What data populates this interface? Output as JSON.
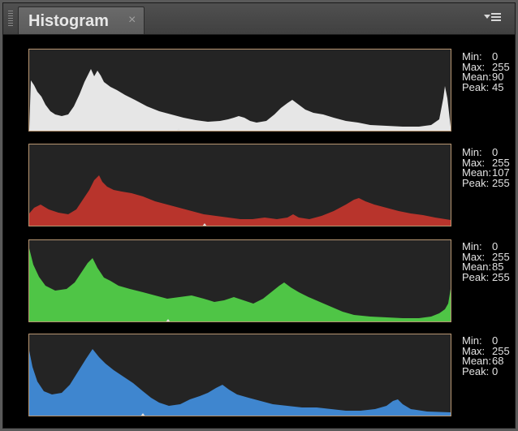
{
  "panel": {
    "tab_label": "Histogram",
    "close_glyph": "×",
    "flyout_icon": "panel-menu-icon"
  },
  "channels": [
    {
      "id": "luminosity",
      "color": "#e6e6e6",
      "stats": [
        {
          "label": "Min:",
          "value": "0"
        },
        {
          "label": "Max:",
          "value": "255"
        },
        {
          "label": "Mean:",
          "value": "90"
        },
        {
          "label": "Peak:",
          "value": "45"
        }
      ]
    },
    {
      "id": "red",
      "color": "#b8342c",
      "stats": [
        {
          "label": "Min:",
          "value": "0"
        },
        {
          "label": "Max:",
          "value": "255"
        },
        {
          "label": "Mean:",
          "value": "107"
        },
        {
          "label": "Peak:",
          "value": "255"
        }
      ]
    },
    {
      "id": "green",
      "color": "#4fc546",
      "stats": [
        {
          "label": "Min:",
          "value": "0"
        },
        {
          "label": "Max:",
          "value": "255"
        },
        {
          "label": "Mean:",
          "value": "85"
        },
        {
          "label": "Peak:",
          "value": "255"
        }
      ]
    },
    {
      "id": "blue",
      "color": "#3f86cf",
      "stats": [
        {
          "label": "Min:",
          "value": "0"
        },
        {
          "label": "Max:",
          "value": "255"
        },
        {
          "label": "Mean:",
          "value": "68"
        },
        {
          "label": "Peak:",
          "value": "0"
        }
      ]
    }
  ]
}
